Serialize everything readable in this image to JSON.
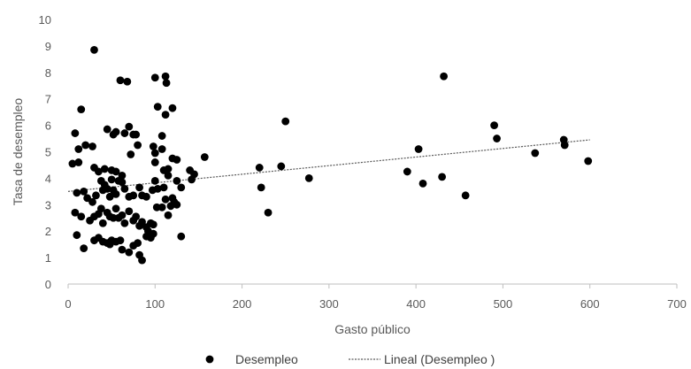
{
  "chart_data": {
    "type": "scatter",
    "title": "",
    "xlabel": "Gasto público",
    "ylabel": "Tasa de desempleo",
    "xlim": [
      0,
      700
    ],
    "ylim": [
      0,
      10
    ],
    "xticks": [
      "0",
      "100",
      "200",
      "300",
      "400",
      "500",
      "600",
      "700"
    ],
    "yticks": [
      "0",
      "1",
      "2",
      "3",
      "4",
      "5",
      "6",
      "7",
      "8",
      "9",
      "10"
    ],
    "grid": false,
    "legend_position": "bottom",
    "marker_color": "#000000",
    "trend_color": "#595959",
    "series": [
      {
        "name": "Desempleo",
        "points": [
          [
            30,
            8.85
          ],
          [
            15,
            6.6
          ],
          [
            60,
            7.7
          ],
          [
            68,
            7.65
          ],
          [
            100,
            7.8
          ],
          [
            112,
            7.85
          ],
          [
            113,
            7.6
          ],
          [
            103,
            6.7
          ],
          [
            112,
            6.4
          ],
          [
            120,
            6.65
          ],
          [
            8,
            5.7
          ],
          [
            12,
            5.1
          ],
          [
            20,
            5.25
          ],
          [
            28,
            5.2
          ],
          [
            45,
            5.85
          ],
          [
            52,
            5.65
          ],
          [
            55,
            5.75
          ],
          [
            65,
            5.7
          ],
          [
            70,
            5.95
          ],
          [
            75,
            5.65
          ],
          [
            78,
            5.65
          ],
          [
            80,
            5.25
          ],
          [
            98,
            5.2
          ],
          [
            108,
            5.1
          ],
          [
            108,
            5.6
          ],
          [
            120,
            4.75
          ],
          [
            5,
            4.55
          ],
          [
            12,
            4.6
          ],
          [
            30,
            4.4
          ],
          [
            35,
            4.25
          ],
          [
            42,
            4.35
          ],
          [
            50,
            4.3
          ],
          [
            55,
            4.25
          ],
          [
            62,
            4.1
          ],
          [
            72,
            4.9
          ],
          [
            100,
            4.95
          ],
          [
            100,
            4.6
          ],
          [
            110,
            4.3
          ],
          [
            115,
            4.35
          ],
          [
            125,
            4.7
          ],
          [
            140,
            4.3
          ],
          [
            142,
            3.95
          ],
          [
            145,
            4.15
          ],
          [
            157,
            4.8
          ],
          [
            10,
            3.45
          ],
          [
            18,
            3.5
          ],
          [
            22,
            3.25
          ],
          [
            28,
            3.1
          ],
          [
            32,
            3.35
          ],
          [
            38,
            3.9
          ],
          [
            40,
            3.55
          ],
          [
            42,
            3.75
          ],
          [
            45,
            3.6
          ],
          [
            48,
            3.3
          ],
          [
            50,
            3.95
          ],
          [
            52,
            3.55
          ],
          [
            55,
            3.4
          ],
          [
            58,
            3.9
          ],
          [
            62,
            3.85
          ],
          [
            65,
            3.6
          ],
          [
            70,
            3.3
          ],
          [
            75,
            3.35
          ],
          [
            82,
            3.65
          ],
          [
            85,
            3.35
          ],
          [
            90,
            3.3
          ],
          [
            97,
            3.55
          ],
          [
            100,
            3.9
          ],
          [
            103,
            3.6
          ],
          [
            110,
            3.65
          ],
          [
            112,
            3.2
          ],
          [
            115,
            4.1
          ],
          [
            120,
            3.25
          ],
          [
            122,
            3.1
          ],
          [
            125,
            3.9
          ],
          [
            130,
            3.65
          ],
          [
            8,
            2.7
          ],
          [
            15,
            2.55
          ],
          [
            25,
            2.4
          ],
          [
            30,
            2.55
          ],
          [
            35,
            2.65
          ],
          [
            38,
            2.85
          ],
          [
            40,
            2.3
          ],
          [
            45,
            2.7
          ],
          [
            48,
            2.55
          ],
          [
            52,
            2.5
          ],
          [
            55,
            2.85
          ],
          [
            58,
            2.5
          ],
          [
            62,
            2.6
          ],
          [
            65,
            2.3
          ],
          [
            70,
            2.75
          ],
          [
            75,
            2.4
          ],
          [
            78,
            2.55
          ],
          [
            82,
            2.2
          ],
          [
            85,
            2.35
          ],
          [
            90,
            2.15
          ],
          [
            92,
            2.0
          ],
          [
            95,
            2.3
          ],
          [
            98,
            2.25
          ],
          [
            102,
            2.9
          ],
          [
            108,
            2.9
          ],
          [
            115,
            2.6
          ],
          [
            118,
            2.95
          ],
          [
            125,
            3.0
          ],
          [
            10,
            1.85
          ],
          [
            18,
            1.35
          ],
          [
            30,
            1.65
          ],
          [
            35,
            1.75
          ],
          [
            40,
            1.6
          ],
          [
            45,
            1.55
          ],
          [
            48,
            1.5
          ],
          [
            50,
            1.65
          ],
          [
            55,
            1.6
          ],
          [
            60,
            1.65
          ],
          [
            62,
            1.3
          ],
          [
            70,
            1.2
          ],
          [
            75,
            1.45
          ],
          [
            80,
            1.55
          ],
          [
            82,
            1.1
          ],
          [
            85,
            0.9
          ],
          [
            90,
            1.8
          ],
          [
            95,
            1.75
          ],
          [
            98,
            1.9
          ],
          [
            130,
            1.8
          ],
          [
            220,
            4.4
          ],
          [
            222,
            3.65
          ],
          [
            230,
            2.7
          ],
          [
            245,
            4.45
          ],
          [
            250,
            6.15
          ],
          [
            277,
            4.0
          ],
          [
            390,
            4.25
          ],
          [
            403,
            5.1
          ],
          [
            408,
            3.8
          ],
          [
            430,
            4.05
          ],
          [
            432,
            7.85
          ],
          [
            457,
            3.35
          ],
          [
            490,
            6.0
          ],
          [
            493,
            5.5
          ],
          [
            537,
            4.95
          ],
          [
            570,
            5.45
          ],
          [
            571,
            5.25
          ],
          [
            598,
            4.65
          ]
        ]
      },
      {
        "name": "Lineal (Desempleo )",
        "trend_line": [
          [
            0,
            3.5
          ],
          [
            600,
            5.45
          ]
        ]
      }
    ]
  }
}
